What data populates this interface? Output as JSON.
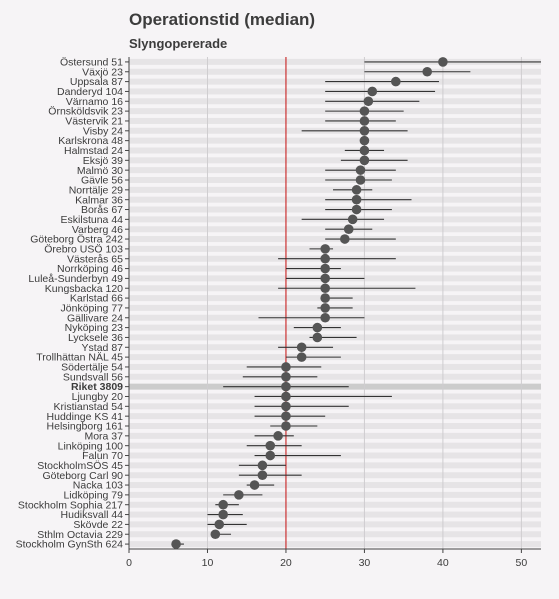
{
  "chart_data": {
    "type": "dot-interval",
    "title": "Operationstid (median)",
    "subtitle": "Slyngopererade",
    "xlim": [
      0,
      52.5
    ],
    "xticks": [
      0,
      10,
      20,
      30,
      40,
      50
    ],
    "reference_line": 20,
    "highlight": "Riket 3809",
    "colors": {
      "point": "#555555",
      "interval": "#333333",
      "reference": "#cc3333",
      "highlight_bar": "#cccccc",
      "stripe": "#e6e4e6",
      "grid": "#cfcdd0"
    },
    "categories": [
      "Östersund 51",
      "Växjö 23",
      "Uppsala 87",
      "Danderyd 104",
      "Värnamo 16",
      "Örnsköldsvik 23",
      "Västervik 21",
      "Visby 24",
      "Karlskrona 48",
      "Halmstad 24",
      "Eksjö 39",
      "Malmö 30",
      "Gävle 56",
      "Norrtälje 29",
      "Kalmar 36",
      "Borås 67",
      "Eskilstuna 44",
      "Varberg 46",
      "Göteborg Östra 242",
      "Örebro USÖ 103",
      "Västerås 65",
      "Norrköping 46",
      "Luleå-Sunderbyn 49",
      "Kungsbacka 120",
      "Karlstad 66",
      "Jönköping 77",
      "Gällivare 24",
      "Nyköping 23",
      "Lycksele 36",
      "Ystad 87",
      "Trollhättan NÄL 45",
      "Södertälje 54",
      "Sundsvall 56",
      "Riket 3809",
      "Ljungby 20",
      "Kristianstad 54",
      "Huddinge KS 41",
      "Helsingborg 161",
      "Mora 37",
      "Linköping 100",
      "Falun 70",
      "StockholmSÖS 45",
      "Göteborg Carl 90",
      "Nacka 103",
      "Lidköping 79",
      "Stockholm Sophia 217",
      "Hudiksvall 44",
      "Skövde 22",
      "Sthlm Octavia 229",
      "Stockholm GynSth 624"
    ],
    "median": [
      40,
      38,
      34,
      31,
      30.5,
      30,
      30,
      30,
      30,
      30,
      30,
      29.5,
      29.5,
      29,
      29,
      29,
      28.5,
      28,
      27.5,
      25,
      25,
      25,
      25,
      25,
      25,
      25,
      25,
      24,
      24,
      22,
      22,
      20,
      20,
      20,
      20,
      20,
      20,
      20,
      19,
      18,
      18,
      17,
      17,
      16,
      14,
      12,
      12,
      11.5,
      11,
      6
    ],
    "low": [
      30,
      30,
      25,
      25,
      25,
      25,
      25,
      22,
      30,
      27.5,
      27,
      25,
      25,
      26,
      25,
      25,
      22,
      25,
      25,
      23,
      19,
      20,
      20,
      19,
      24.5,
      24,
      16.5,
      21,
      23,
      19,
      20,
      15,
      14.5,
      12,
      16,
      16,
      16,
      18,
      16,
      15,
      16,
      14,
      14,
      15,
      12,
      11,
      10,
      10,
      10.5,
      5.5
    ],
    "high": [
      52.5,
      43.5,
      39.5,
      39,
      37,
      35,
      34,
      35.5,
      30,
      32.5,
      35.5,
      34,
      33.5,
      31,
      36,
      33.5,
      32.5,
      31,
      34,
      26,
      34,
      27,
      30,
      36.5,
      28.5,
      28.5,
      30,
      27,
      29,
      26,
      27,
      24.5,
      24,
      28,
      33.5,
      28,
      25,
      24,
      21,
      22,
      27,
      20,
      22,
      18.5,
      17,
      14,
      14.5,
      15,
      13,
      7
    ]
  }
}
